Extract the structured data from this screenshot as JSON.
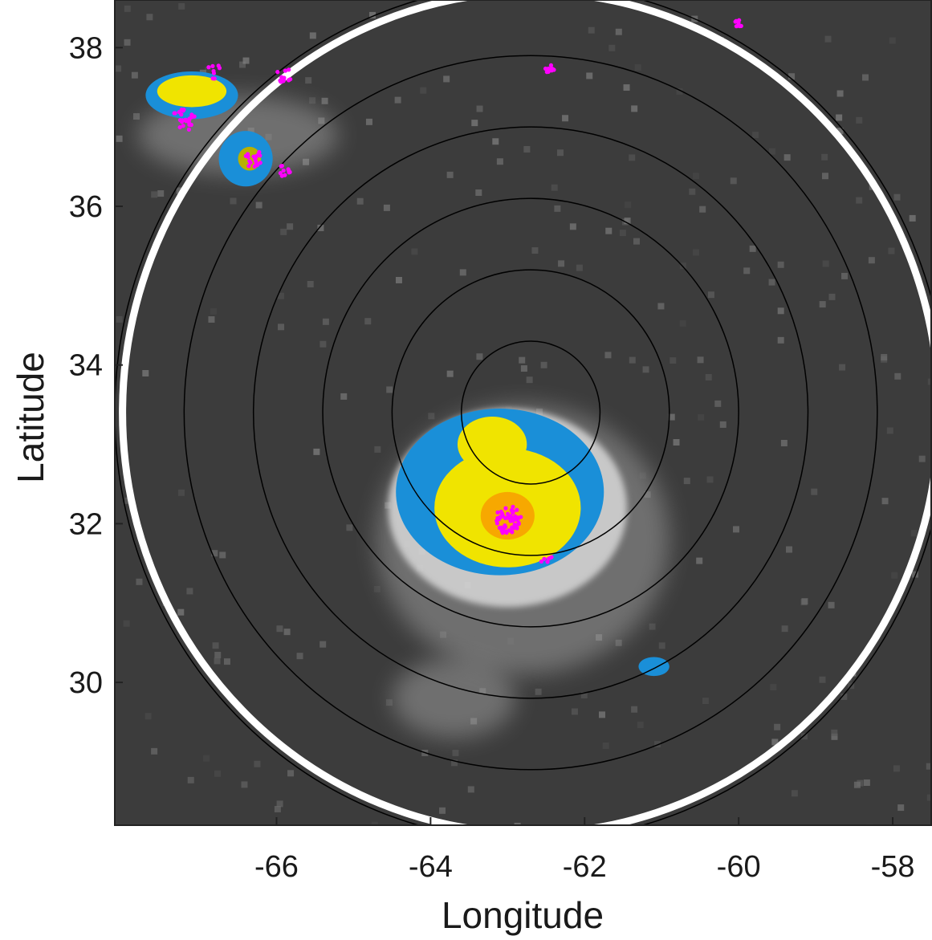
{
  "chart_data": {
    "type": "map",
    "title": "",
    "xlabel": "Longitude",
    "ylabel": "Latitude",
    "xlim": [
      -68.1,
      -57.5
    ],
    "ylim": [
      28.2,
      38.6
    ],
    "xticks": [
      -66,
      -64,
      -62,
      -60,
      -58
    ],
    "yticks": [
      30,
      32,
      34,
      36,
      38
    ],
    "grid": false,
    "background_color": "#3c3c3c",
    "colors": {
      "ring": "#000000",
      "outer_ring": "#ffffff",
      "lightning": "#ff00ff",
      "cloud_light": "#d8d8d8",
      "cloud_mid": "#9a9a9a",
      "cold_blue": "#1a8fd8",
      "yellow": "#f0e400",
      "orange": "#f7a800",
      "olive": "#b8b000"
    },
    "storm_center": {
      "lon": -62.7,
      "lat": 33.4
    },
    "range_rings_deg": [
      0.9,
      1.8,
      2.7,
      3.6,
      4.5,
      5.4
    ],
    "outer_ring_deg": 5.3,
    "cold_cloud_regions": [
      {
        "lon": -63.1,
        "lat": 32.4,
        "r_lon": 1.35,
        "r_lat": 1.05,
        "color": "cold_blue"
      },
      {
        "lon": -63.0,
        "lat": 32.2,
        "r_lon": 0.95,
        "r_lat": 0.75,
        "color": "yellow"
      },
      {
        "lon": -63.0,
        "lat": 32.1,
        "r_lon": 0.35,
        "r_lat": 0.3,
        "color": "orange"
      },
      {
        "lon": -63.2,
        "lat": 33.0,
        "r_lon": 0.45,
        "r_lat": 0.35,
        "color": "yellow"
      },
      {
        "lon": -67.1,
        "lat": 37.4,
        "r_lon": 0.6,
        "r_lat": 0.3,
        "color": "cold_blue"
      },
      {
        "lon": -67.1,
        "lat": 37.45,
        "r_lon": 0.45,
        "r_lat": 0.2,
        "color": "yellow"
      },
      {
        "lon": -66.4,
        "lat": 36.6,
        "r_lon": 0.35,
        "r_lat": 0.35,
        "color": "cold_blue"
      },
      {
        "lon": -66.35,
        "lat": 36.6,
        "r_lon": 0.15,
        "r_lat": 0.15,
        "color": "olive"
      },
      {
        "lon": -61.1,
        "lat": 30.2,
        "r_lon": 0.2,
        "r_lat": 0.12,
        "color": "cold_blue"
      }
    ],
    "cloud_regions": [
      {
        "lon": -62.8,
        "lat": 31.8,
        "r_lon": 1.9,
        "r_lat": 1.7,
        "color": "cloud_mid"
      },
      {
        "lon": -63.7,
        "lat": 29.8,
        "r_lon": 0.8,
        "r_lat": 0.5,
        "color": "cloud_mid"
      },
      {
        "lon": -66.5,
        "lat": 36.9,
        "r_lon": 1.3,
        "r_lat": 0.5,
        "color": "cloud_mid"
      }
    ],
    "lightning_clusters": [
      {
        "lon": -63.0,
        "lat": 32.05,
        "n": 60,
        "spread": 0.18
      },
      {
        "lon": -67.2,
        "lat": 37.1,
        "n": 25,
        "spread": 0.15
      },
      {
        "lon": -66.3,
        "lat": 36.6,
        "n": 18,
        "spread": 0.12
      },
      {
        "lon": -65.9,
        "lat": 37.65,
        "n": 15,
        "spread": 0.1
      },
      {
        "lon": -62.45,
        "lat": 37.72,
        "n": 10,
        "spread": 0.06
      },
      {
        "lon": -60.0,
        "lat": 38.3,
        "n": 8,
        "spread": 0.05
      },
      {
        "lon": -65.9,
        "lat": 36.45,
        "n": 10,
        "spread": 0.08
      },
      {
        "lon": -66.8,
        "lat": 37.7,
        "n": 8,
        "spread": 0.1
      },
      {
        "lon": -62.5,
        "lat": 31.55,
        "n": 6,
        "spread": 0.08
      }
    ]
  }
}
